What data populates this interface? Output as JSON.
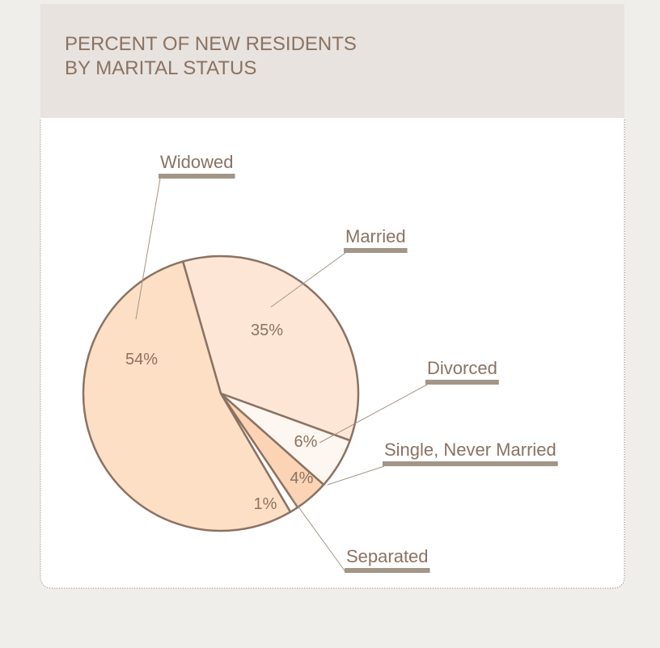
{
  "chart_data": {
    "type": "pie",
    "title": "PERCENT OF NEW RESIDENTS\nBY MARITAL STATUS",
    "categories": [
      "Married",
      "Divorced",
      "Single, Never Married",
      "Separated",
      "Widowed"
    ],
    "values": [
      35,
      6,
      4,
      1,
      54
    ],
    "value_labels": [
      "35%",
      "6%",
      "4%",
      "1%",
      "54%"
    ],
    "colors": [
      "#fde6d6",
      "#fef6f0",
      "#fcd3b4",
      "#ffffff",
      "#fcdfc4"
    ]
  }
}
